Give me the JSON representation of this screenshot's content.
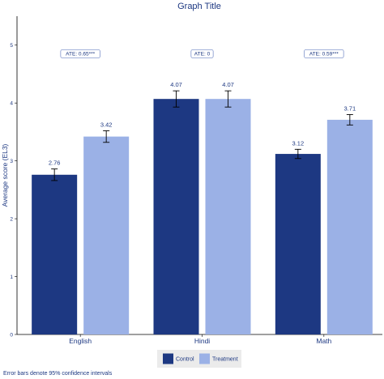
{
  "colors": {
    "control": "#1d3882",
    "treatment": "#9bb1e6",
    "text": "#1d3882",
    "axis": "#000000",
    "legend_bg": "#ebebeb",
    "ate_border": "#6d84c4"
  },
  "chart_data": {
    "type": "bar",
    "title": "Graph Title",
    "xlabel": "",
    "ylabel": "Average score (EL3)",
    "categories": [
      "English",
      "Hindi",
      "Math"
    ],
    "series": [
      {
        "name": "Control",
        "values": [
          2.76,
          4.07,
          3.12
        ],
        "value_labels": [
          "2.76",
          "4.07",
          "3.12"
        ],
        "ci_low": [
          2.66,
          3.93,
          3.04
        ],
        "ci_high": [
          2.86,
          4.21,
          3.2
        ]
      },
      {
        "name": "Treatment",
        "values": [
          3.42,
          4.07,
          3.71
        ],
        "value_labels": [
          "3.42",
          "4.07",
          "3.71"
        ],
        "ci_low": [
          3.32,
          3.93,
          3.62
        ],
        "ci_high": [
          3.52,
          4.21,
          3.8
        ]
      }
    ],
    "ate_labels": [
      "ATE: 0.65***",
      "ATE: 0",
      "ATE: 0.59***"
    ],
    "ate_y": 4.85,
    "ylim": [
      0,
      5.5
    ],
    "yticks": [
      "0",
      "1",
      "2",
      "3",
      "4",
      "5"
    ],
    "grid": false,
    "legend_position": "bottom",
    "note": "Error bars denote 95% confidence intervals"
  }
}
